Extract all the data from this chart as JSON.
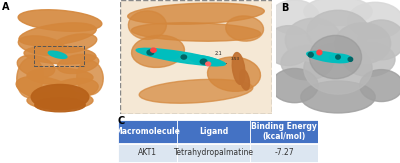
{
  "panel_a_label": "A",
  "panel_b_label": "B",
  "panel_c_label": "C",
  "table_header": [
    "Macromolecule",
    "Ligand",
    "Binding Energy\n(kcal/mol)"
  ],
  "table_row": [
    "AKT1",
    "Tetrahydropalmatine",
    "-7.27"
  ],
  "header_color": "#4472C4",
  "row_color": "#DCE6F1",
  "header_text_color": "#FFFFFF",
  "row_text_color": "#333333",
  "background_color": "#FFFFFF",
  "protein_color": "#D4873C",
  "cyan_color": "#00BFBF",
  "label_fontsize": 7,
  "table_fontsize": 5.5
}
